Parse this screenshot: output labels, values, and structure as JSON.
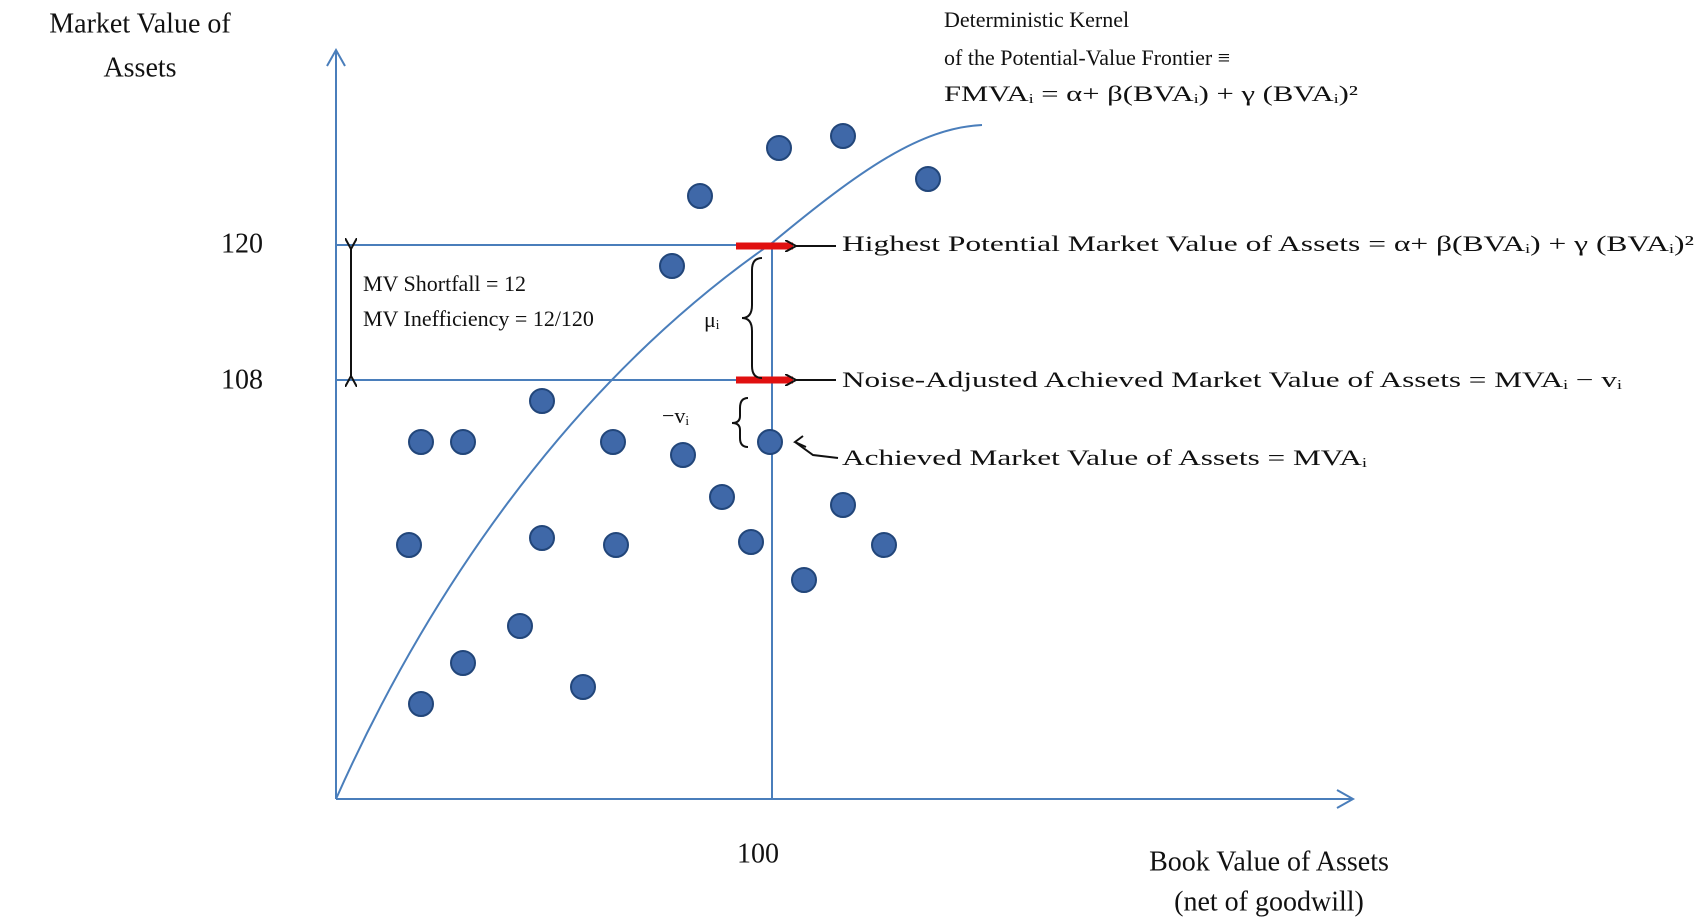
{
  "y_axis": {
    "label": [
      "Market Value of",
      "Assets"
    ],
    "ticks": [
      "120",
      "108"
    ]
  },
  "x_axis": {
    "label": [
      "Book Value of Assets",
      "(net of goodwill)"
    ],
    "ticks": [
      "100"
    ]
  },
  "frontier": {
    "label": [
      "Deterministic Kernel",
      "of the Potential-Value Frontier ≡",
      "FMVAᵢ = α+ β(BVAᵢ) + γ (BVAᵢ)²"
    ]
  },
  "annotations": {
    "shortfall": "MV Shortfall = 12",
    "inefficiency": "MV Inefficiency = 12/120",
    "mu": "μᵢ",
    "v": "−vᵢ",
    "highest": "Highest Potential Market Value of Assets = α+ β(BVAᵢ) + γ (BVAᵢ)²",
    "noise_adjusted": "Noise-Adjusted Achieved Market Value of Assets = MVAᵢ − vᵢ",
    "achieved": "Achieved Market Value of Assets = MVAᵢ"
  }
}
